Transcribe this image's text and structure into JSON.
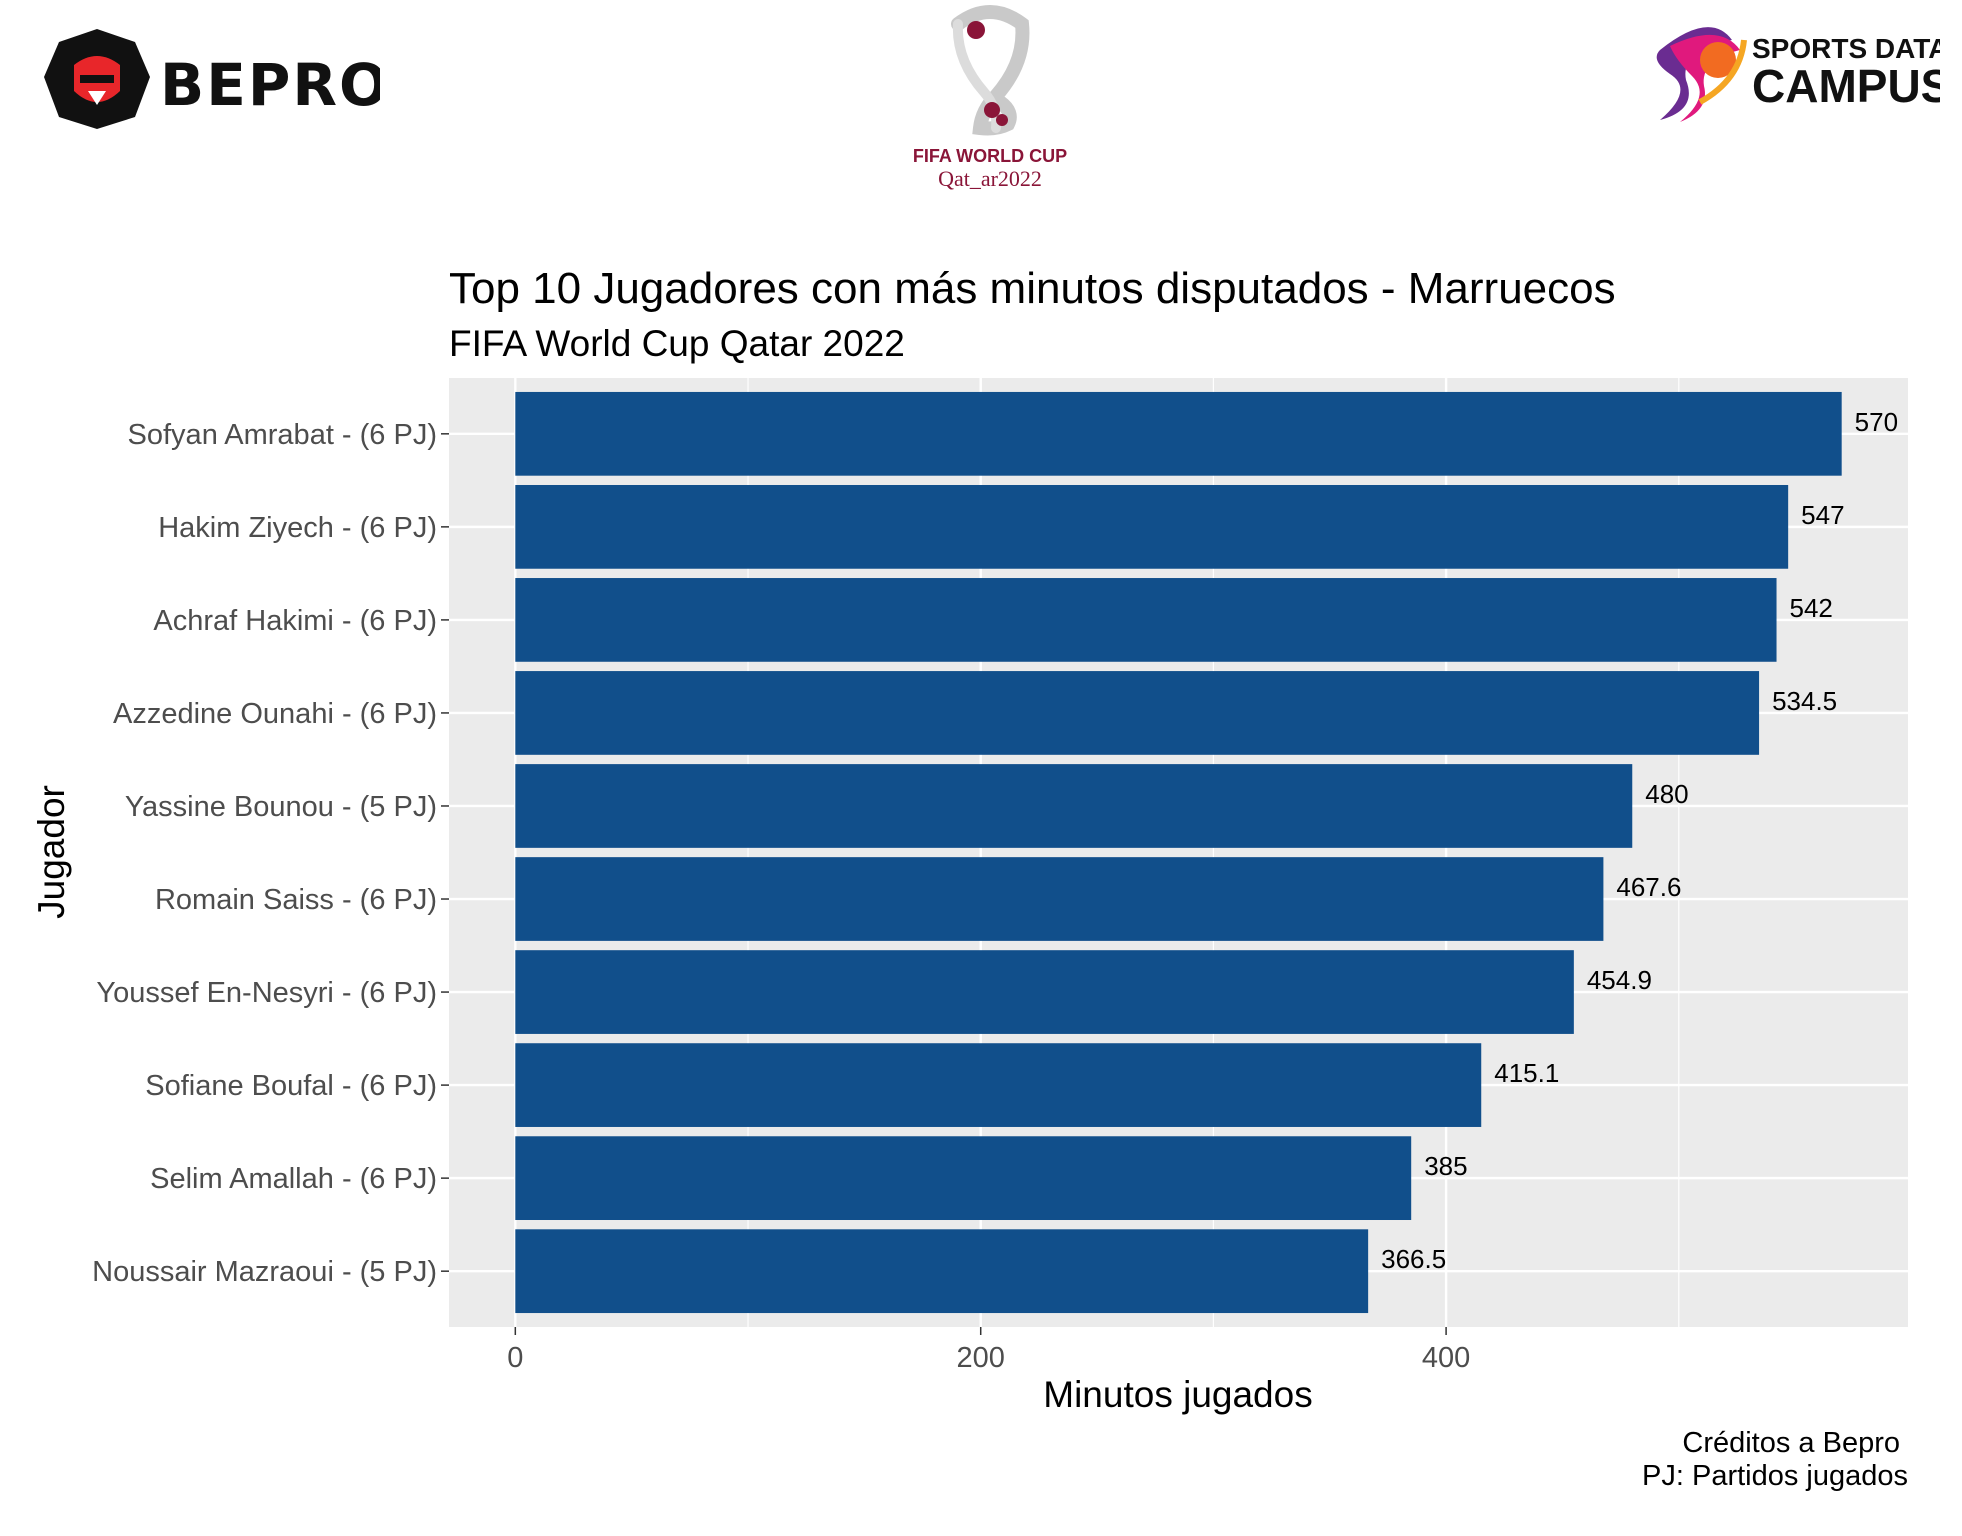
{
  "logos": {
    "bepro": "BEPRO",
    "fifa_line1": "FIFA WORLD CUP",
    "fifa_line2": "Qat_ar2022",
    "sdc_line1": "SPORTS DATA",
    "sdc_line2": "CAMPUS"
  },
  "colors": {
    "bar": "#114F8B",
    "panel": "#EBEBEB",
    "grid": "#FFFFFF",
    "bepro_red": "#E8262A",
    "fifa_maroon": "#8A1538"
  },
  "chart_data": {
    "type": "bar",
    "orientation": "horizontal",
    "title": "Top 10 Jugadores con más minutos disputados - Marruecos",
    "subtitle": "FIFA World Cup Qatar 2022",
    "xlabel": "Minutos jugados",
    "ylabel": "Jugador",
    "xlim": [
      -28.5,
      598.5
    ],
    "xticks": [
      0,
      200,
      400
    ],
    "grid": true,
    "categories": [
      "Sofyan Amrabat - (6 PJ)",
      "Hakim Ziyech - (6 PJ)",
      "Achraf Hakimi - (6 PJ)",
      "Azzedine Ounahi - (6 PJ)",
      "Yassine Bounou - (5 PJ)",
      "Romain Saiss - (6 PJ)",
      "Youssef En-Nesyri - (6 PJ)",
      "Sofiane Boufal - (6 PJ)",
      "Selim Amallah - (6 PJ)",
      "Noussair Mazraoui - (5 PJ)"
    ],
    "values": [
      570,
      547,
      542,
      534.5,
      480,
      467.6,
      454.9,
      415.1,
      385,
      366.5
    ],
    "value_labels": [
      "570",
      "547",
      "542",
      "534.5",
      "480",
      "467.6",
      "454.9",
      "415.1",
      "385",
      "366.5"
    ],
    "caption": [
      "Créditos a Bepro",
      "PJ: Partidos jugados"
    ]
  }
}
